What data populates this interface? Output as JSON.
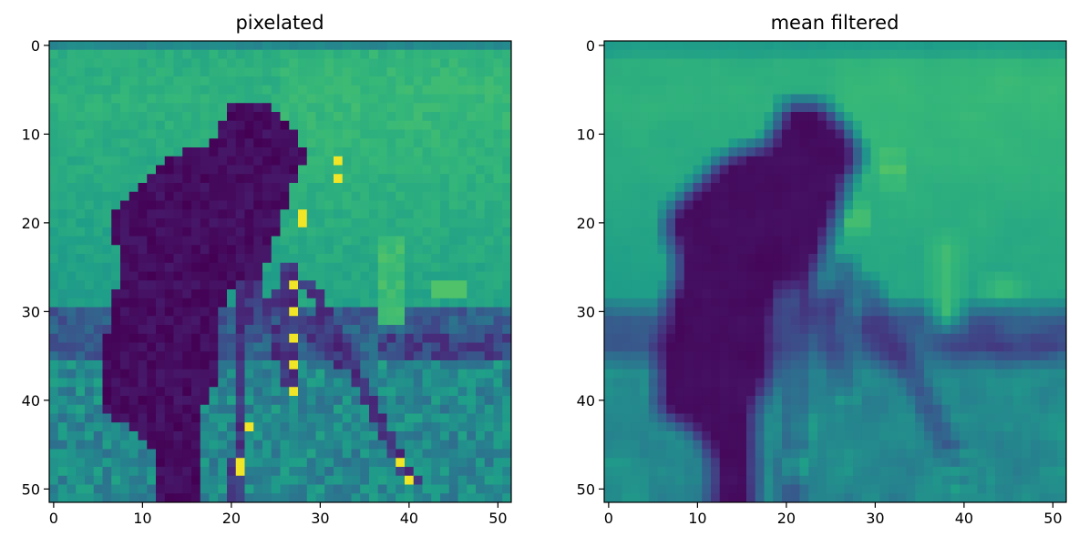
{
  "chart_data": [
    {
      "type": "heatmap",
      "title": "pixelated",
      "xlabel": "",
      "ylabel": "",
      "colormap": "viridis",
      "grid": false,
      "xlim": [
        -0.5,
        51.5
      ],
      "ylim": [
        51.5,
        -0.5
      ],
      "x_ticks": [
        "0",
        "10",
        "20",
        "30",
        "40",
        "50"
      ],
      "y_ticks": [
        "0",
        "10",
        "20",
        "30",
        "40",
        "50"
      ],
      "size": [
        52,
        52
      ],
      "colors": {
        "dark": "#440154",
        "bg": "#2fa78a",
        "sky": "#3cba75",
        "bright": "#e5e419"
      }
    },
    {
      "type": "heatmap",
      "title": "mean filtered",
      "xlabel": "",
      "ylabel": "",
      "colormap": "viridis",
      "grid": false,
      "xlim": [
        -0.5,
        51.5
      ],
      "ylim": [
        51.5,
        -0.5
      ],
      "x_ticks": [
        "0",
        "10",
        "20",
        "30",
        "40",
        "50"
      ],
      "y_ticks": [
        "0",
        "10",
        "20",
        "30",
        "40",
        "50"
      ],
      "size": [
        52,
        52
      ],
      "colors": {
        "dark": "#440154",
        "bg": "#2fa78a",
        "sky": "#3cba75",
        "bright": "#e5e419"
      }
    }
  ]
}
